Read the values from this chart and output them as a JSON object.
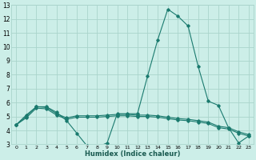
{
  "xlabel": "Humidex (Indice chaleur)",
  "bg_color": "#cceee8",
  "grid_color": "#aad4cc",
  "line_color": "#1a7a6e",
  "xlim": [
    -0.5,
    23.5
  ],
  "ylim": [
    3,
    13
  ],
  "xticks": [
    0,
    1,
    2,
    3,
    4,
    5,
    6,
    7,
    8,
    9,
    10,
    11,
    12,
    13,
    14,
    15,
    16,
    17,
    18,
    19,
    20,
    21,
    22,
    23
  ],
  "yticks": [
    3,
    4,
    5,
    6,
    7,
    8,
    9,
    10,
    11,
    12,
    13
  ],
  "series1_x": [
    0,
    1,
    2,
    3,
    4,
    5,
    6,
    7,
    8,
    9,
    10,
    11,
    12,
    13,
    14,
    15,
    16,
    17,
    18,
    19,
    20,
    21,
    22,
    23
  ],
  "series1_y": [
    4.4,
    5.1,
    5.7,
    5.7,
    5.3,
    4.7,
    3.8,
    2.9,
    2.8,
    3.1,
    5.2,
    5.2,
    5.2,
    7.9,
    10.5,
    12.7,
    12.2,
    11.5,
    8.6,
    6.1,
    5.8,
    4.2,
    3.1,
    3.6
  ],
  "series2_x": [
    0,
    1,
    2,
    3,
    4,
    5,
    6,
    7,
    8,
    9,
    10,
    11,
    12,
    13,
    14,
    15,
    16,
    17,
    18,
    19,
    20,
    21,
    22,
    23
  ],
  "series2_y": [
    4.4,
    5.0,
    5.7,
    5.65,
    5.2,
    4.9,
    5.05,
    5.05,
    5.05,
    5.1,
    5.15,
    5.15,
    5.1,
    5.1,
    5.05,
    4.95,
    4.85,
    4.8,
    4.7,
    4.6,
    4.3,
    4.2,
    3.9,
    3.7
  ],
  "series3_x": [
    0,
    1,
    2,
    3,
    4,
    5,
    6,
    7,
    8,
    9,
    10,
    11,
    12,
    13,
    14,
    15,
    16,
    17,
    18,
    19,
    20,
    21,
    22,
    23
  ],
  "series3_y": [
    4.4,
    4.9,
    5.6,
    5.55,
    5.1,
    4.8,
    4.95,
    4.95,
    4.95,
    5.0,
    5.05,
    5.05,
    5.0,
    5.0,
    4.95,
    4.85,
    4.75,
    4.7,
    4.6,
    4.5,
    4.2,
    4.1,
    3.8,
    3.6
  ]
}
